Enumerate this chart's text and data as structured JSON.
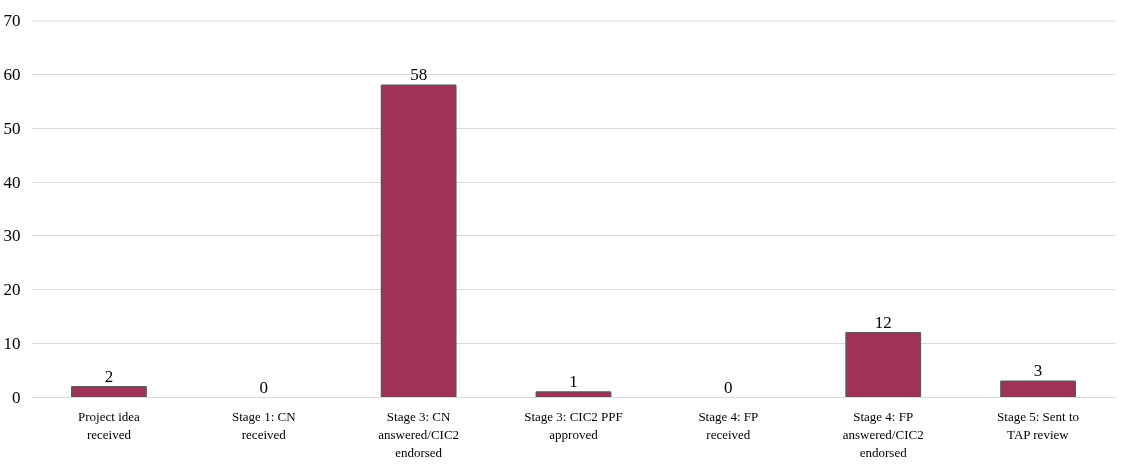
{
  "chart_data": {
    "type": "bar",
    "categories": [
      "Project idea received",
      "Stage 1: CN received",
      "Stage 3: CN answered/CIC2 endorsed",
      "Stage 3: CIC2 PPF approved",
      "Stage 4: FP received",
      "Stage 4: FP answered/CIC2 endorsed",
      "Stage 5: Sent to TAP review"
    ],
    "values": [
      2,
      0,
      58,
      1,
      0,
      12,
      3
    ],
    "color": "#a03256",
    "ylim": [
      0,
      70
    ],
    "yticks": [
      0,
      10,
      20,
      30,
      40,
      50,
      60,
      70
    ],
    "grid": "y",
    "data_labels": true
  }
}
